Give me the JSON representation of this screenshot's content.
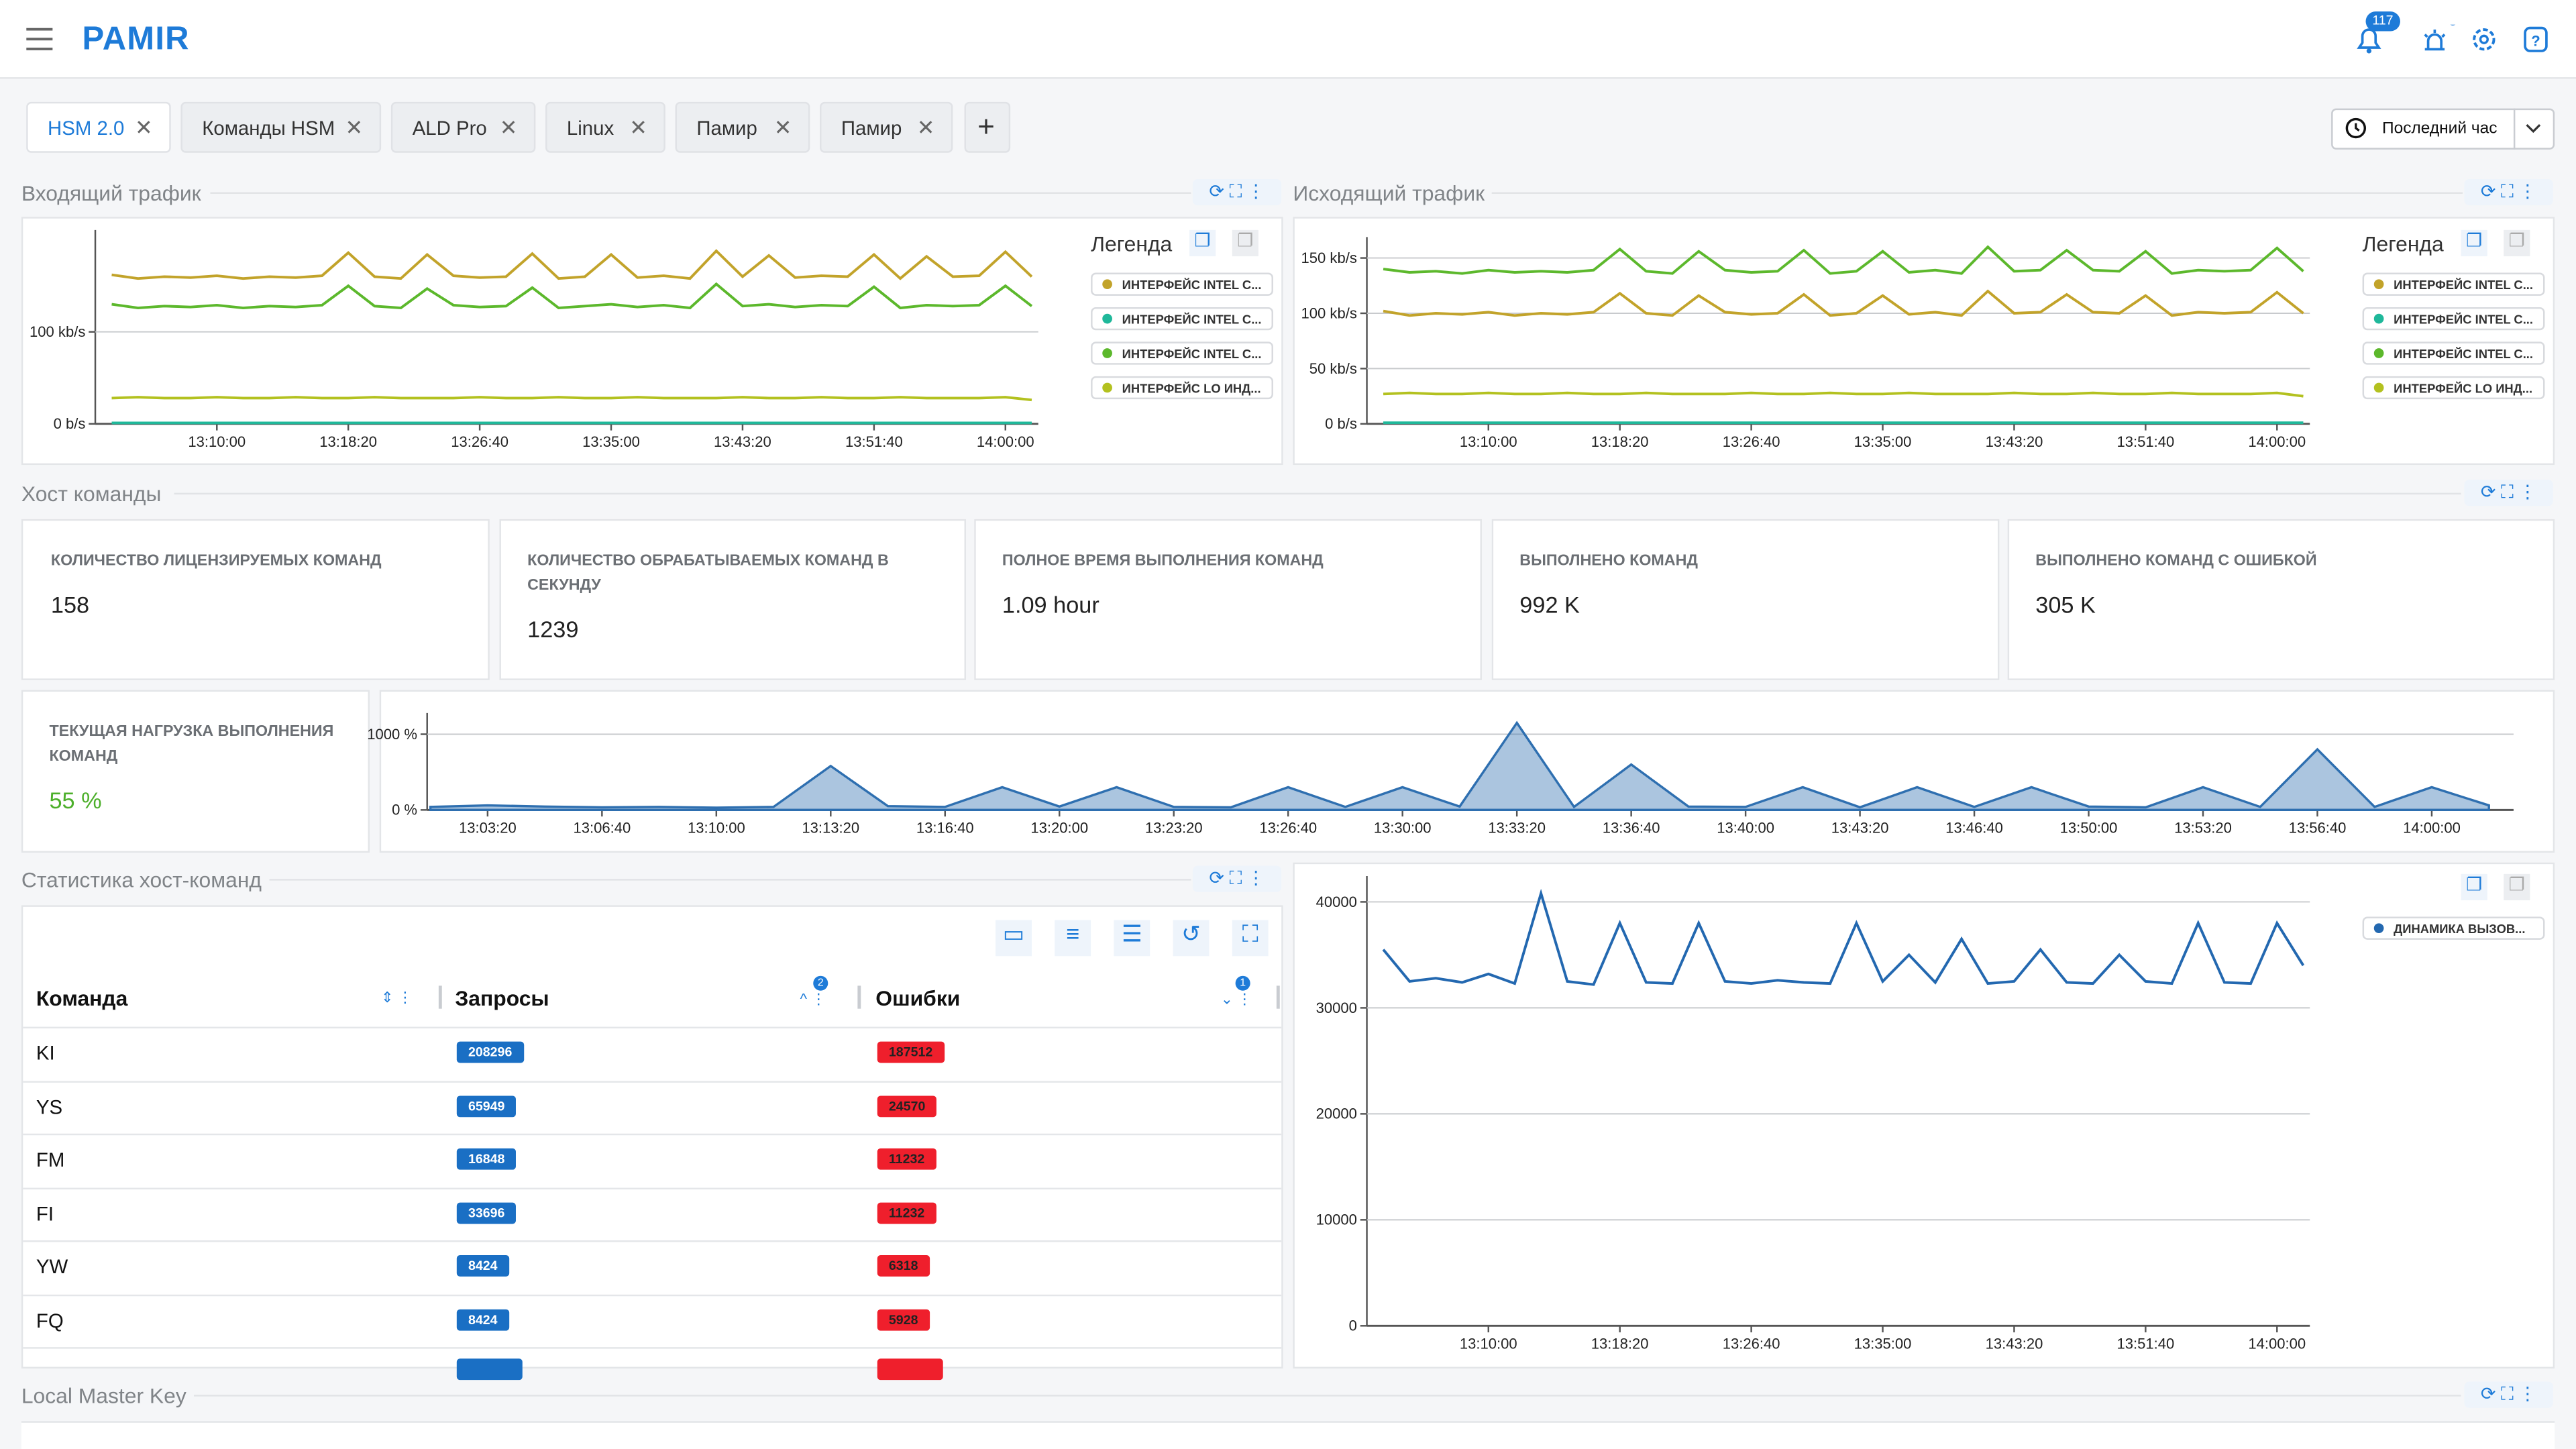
{
  "header": {
    "logo": "PAMIR",
    "notifications": "117"
  },
  "tabs": [
    "HSM 2.0",
    "Команды HSM",
    "ALD Pro",
    "Linux",
    "Памир",
    "Памир"
  ],
  "time_range": "Последний час",
  "sections": {
    "incoming": "Входящий трафик",
    "outgoing": "Исходящий трафик",
    "host": "Хост команды",
    "stats": "Статистика хост-команд",
    "lmk": "Local Master Key"
  },
  "legend_title": "Легенда",
  "cards": [
    {
      "label": "КОЛИЧЕСТВО ЛИЦЕНЗИРУЕМЫХ КОМАНД",
      "value": "158"
    },
    {
      "label": "КОЛИЧЕСТВО ОБРАБАТЫВАЕМЫХ КОМАНД В СЕКУНДУ",
      "value": "1239"
    },
    {
      "label": "ПОЛНОЕ ВРЕМЯ ВЫПОЛНЕНИЯ КОМАНД",
      "value": "1.09 hour"
    },
    {
      "label": "ВЫПОЛНЕНО КОМАНД",
      "value": "992 K"
    },
    {
      "label": "ВЫПОЛНЕНО КОМАНД С ОШИБКОЙ",
      "value": "305 K"
    }
  ],
  "load_card": {
    "label": "ТЕКУЩАЯ НАГРУЗКА ВЫПОЛНЕНИЯ КОМАНД",
    "value": "55 %"
  },
  "table": {
    "columns": [
      "Команда",
      "Запросы",
      "Ошибки"
    ],
    "sort_badges": [
      "2",
      "1"
    ],
    "rows": [
      [
        "KI",
        "208296",
        "187512"
      ],
      [
        "YS",
        "65949",
        "24570"
      ],
      [
        "FM",
        "16848",
        "11232"
      ],
      [
        "FI",
        "33696",
        "11232"
      ],
      [
        "YW",
        "8424",
        "6318"
      ],
      [
        "FQ",
        "8424",
        "5928"
      ]
    ]
  },
  "chart_data": [
    {
      "type": "line",
      "title": "Входящий трафик",
      "x": [
        "13:03:20",
        "13:05:00",
        "13:06:40",
        "13:08:20",
        "13:10:00",
        "13:11:40",
        "13:13:20",
        "13:15:00",
        "13:16:40",
        "13:18:20",
        "13:20:00",
        "13:21:40",
        "13:23:20",
        "13:25:00",
        "13:26:40",
        "13:28:20",
        "13:30:00",
        "13:31:40",
        "13:33:20",
        "13:35:00",
        "13:36:40",
        "13:38:20",
        "13:40:00",
        "13:41:40",
        "13:43:20",
        "13:45:00",
        "13:46:40",
        "13:48:20",
        "13:50:00",
        "13:51:40",
        "13:53:20",
        "13:55:00",
        "13:56:40",
        "13:58:20",
        "14:00:00",
        "14:01:40"
      ],
      "xticks": [
        "13:10:00",
        "13:18:20",
        "13:26:40",
        "13:35:00",
        "13:43:20",
        "13:51:40",
        "14:00:00"
      ],
      "ylim": [
        0,
        200
      ],
      "yticks": [
        {
          "value": 0,
          "label": "0 b/s"
        },
        {
          "value": 100,
          "label": "100 kb/s"
        }
      ],
      "grid": true,
      "series": [
        {
          "name": "ИНТЕРФЕЙС INTEL С...",
          "color": "#c2a32a",
          "values": [
            162,
            158,
            160,
            159,
            161,
            158,
            160,
            159,
            161,
            186,
            160,
            158,
            184,
            161,
            159,
            160,
            185,
            158,
            160,
            184,
            159,
            161,
            158,
            188,
            160,
            183,
            159,
            161,
            160,
            184,
            158,
            182,
            160,
            161,
            187,
            160
          ]
        },
        {
          "name": "ИНТЕРФЕЙС INTEL С...",
          "color": "#1fb89a",
          "values": [
            1,
            1,
            1,
            1,
            1,
            1,
            1,
            1,
            1,
            1,
            1,
            1,
            1,
            1,
            1,
            1,
            1,
            1,
            1,
            1,
            1,
            1,
            1,
            1,
            1,
            1,
            1,
            1,
            1,
            1,
            1,
            1,
            1,
            1,
            1,
            1
          ]
        },
        {
          "name": "ИНТЕРФЕЙС INTEL С...",
          "color": "#5cb82c",
          "values": [
            130,
            126,
            128,
            127,
            129,
            126,
            128,
            127,
            129,
            150,
            128,
            126,
            147,
            129,
            127,
            128,
            148,
            126,
            128,
            130,
            127,
            129,
            126,
            152,
            128,
            130,
            127,
            129,
            128,
            149,
            126,
            129,
            128,
            129,
            150,
            128
          ]
        },
        {
          "name": "ИНТЕРФЕЙС LO ИНД...",
          "color": "#b3c11f",
          "values": [
            28,
            29,
            28,
            28,
            29,
            28,
            28,
            29,
            28,
            28,
            29,
            28,
            28,
            28,
            29,
            28,
            28,
            29,
            28,
            28,
            29,
            28,
            28,
            28,
            29,
            28,
            28,
            29,
            28,
            28,
            29,
            28,
            28,
            28,
            29,
            26
          ]
        }
      ]
    },
    {
      "type": "line",
      "title": "Исходящий трафик",
      "x": [
        "13:03:20",
        "13:05:00",
        "13:06:40",
        "13:08:20",
        "13:10:00",
        "13:11:40",
        "13:13:20",
        "13:15:00",
        "13:16:40",
        "13:18:20",
        "13:20:00",
        "13:21:40",
        "13:23:20",
        "13:25:00",
        "13:26:40",
        "13:28:20",
        "13:30:00",
        "13:31:40",
        "13:33:20",
        "13:35:00",
        "13:36:40",
        "13:38:20",
        "13:40:00",
        "13:41:40",
        "13:43:20",
        "13:45:00",
        "13:46:40",
        "13:48:20",
        "13:50:00",
        "13:51:40",
        "13:53:20",
        "13:55:00",
        "13:56:40",
        "13:58:20",
        "14:00:00",
        "14:01:40"
      ],
      "xticks": [
        "13:10:00",
        "13:18:20",
        "13:26:40",
        "13:35:00",
        "13:43:20",
        "13:51:40",
        "14:00:00"
      ],
      "ylim": [
        0,
        160
      ],
      "yticks": [
        {
          "value": 0,
          "label": "0 b/s"
        },
        {
          "value": 50,
          "label": "50 kb/s"
        },
        {
          "value": 100,
          "label": "100 kb/s"
        },
        {
          "value": 150,
          "label": "150 kb/s"
        }
      ],
      "grid": true,
      "series": [
        {
          "name": "ИНТЕРФЕЙС INTEL С...",
          "color": "#c2a32a",
          "values": [
            102,
            98,
            100,
            99,
            101,
            98,
            100,
            99,
            101,
            118,
            100,
            98,
            116,
            101,
            99,
            100,
            117,
            98,
            100,
            116,
            99,
            101,
            98,
            120,
            100,
            101,
            117,
            101,
            100,
            116,
            98,
            101,
            100,
            101,
            119,
            100
          ]
        },
        {
          "name": "ИНТЕРФЕЙС INTEL С...",
          "color": "#1fb89a",
          "values": [
            1,
            1,
            1,
            1,
            1,
            1,
            1,
            1,
            1,
            1,
            1,
            1,
            1,
            1,
            1,
            1,
            1,
            1,
            1,
            1,
            1,
            1,
            1,
            1,
            1,
            1,
            1,
            1,
            1,
            1,
            1,
            1,
            1,
            1,
            1,
            1
          ]
        },
        {
          "name": "ИНТЕРФЕЙС INTEL С...",
          "color": "#5cb82c",
          "values": [
            140,
            137,
            138,
            136,
            139,
            137,
            138,
            137,
            139,
            158,
            138,
            136,
            156,
            139,
            137,
            138,
            157,
            136,
            138,
            156,
            137,
            139,
            136,
            160,
            138,
            139,
            157,
            139,
            138,
            156,
            136,
            139,
            138,
            139,
            159,
            138
          ]
        },
        {
          "name": "ИНТЕРФЕЙС LO ИНД...",
          "color": "#b3c11f",
          "values": [
            27,
            28,
            27,
            27,
            28,
            27,
            27,
            28,
            27,
            27,
            28,
            27,
            27,
            27,
            28,
            27,
            27,
            28,
            27,
            27,
            28,
            27,
            27,
            27,
            28,
            27,
            27,
            28,
            27,
            27,
            28,
            27,
            27,
            27,
            28,
            25
          ]
        }
      ]
    },
    {
      "type": "area",
      "title": "ТЕКУЩАЯ НАГРУЗКА ВЫПОЛНЕНИЯ КОМАНД",
      "x": [
        "13:01:40",
        "13:03:20",
        "13:05:00",
        "13:06:40",
        "13:08:20",
        "13:10:00",
        "13:11:40",
        "13:13:20",
        "13:15:00",
        "13:16:40",
        "13:18:20",
        "13:20:00",
        "13:21:40",
        "13:23:20",
        "13:25:00",
        "13:26:40",
        "13:28:20",
        "13:30:00",
        "13:31:40",
        "13:33:20",
        "13:35:00",
        "13:36:40",
        "13:38:20",
        "13:40:00",
        "13:41:40",
        "13:43:20",
        "13:45:00",
        "13:46:40",
        "13:48:20",
        "13:50:00",
        "13:51:40",
        "13:53:20",
        "13:55:00",
        "13:56:40",
        "13:58:20",
        "14:00:00",
        "14:01:40"
      ],
      "xticks": [
        "13:03:20",
        "13:06:40",
        "13:10:00",
        "13:13:20",
        "13:16:40",
        "13:20:00",
        "13:23:20",
        "13:26:40",
        "13:30:00",
        "13:33:20",
        "13:36:40",
        "13:40:00",
        "13:43:20",
        "13:46:40",
        "13:50:00",
        "13:53:20",
        "13:56:40",
        "14:00:00"
      ],
      "ylim": [
        0,
        1150
      ],
      "yticks": [
        {
          "value": 0,
          "label": "0 %"
        },
        {
          "value": 1000,
          "label": "1000 %"
        }
      ],
      "grid": true,
      "color": "#2e6fb0",
      "values": [
        40,
        60,
        45,
        35,
        40,
        30,
        40,
        580,
        50,
        40,
        300,
        45,
        300,
        40,
        35,
        300,
        40,
        300,
        45,
        1150,
        40,
        600,
        45,
        40,
        300,
        35,
        300,
        40,
        300,
        45,
        35,
        300,
        40,
        800,
        40,
        300,
        60
      ]
    },
    {
      "type": "line",
      "title": "Статистика хост-команд",
      "x": [
        "13:03:20",
        "13:05:00",
        "13:06:40",
        "13:08:20",
        "13:10:00",
        "13:11:40",
        "13:13:20",
        "13:15:00",
        "13:16:40",
        "13:18:20",
        "13:20:00",
        "13:21:40",
        "13:23:20",
        "13:25:00",
        "13:26:40",
        "13:28:20",
        "13:30:00",
        "13:31:40",
        "13:33:20",
        "13:35:00",
        "13:36:40",
        "13:38:20",
        "13:40:00",
        "13:41:40",
        "13:43:20",
        "13:45:00",
        "13:46:40",
        "13:48:20",
        "13:50:00",
        "13:51:40",
        "13:53:20",
        "13:55:00",
        "13:56:40",
        "13:58:20",
        "14:00:00",
        "14:01:40"
      ],
      "xticks": [
        "13:10:00",
        "13:18:20",
        "13:26:40",
        "13:35:00",
        "13:43:20",
        "13:51:40",
        "14:00:00"
      ],
      "ylim": [
        0,
        41500
      ],
      "yticks": [
        0,
        10000,
        20000,
        30000,
        40000
      ],
      "grid": true,
      "series": [
        {
          "name": "ДИНАМИКА ВЫЗОВ...",
          "color": "#2368b0",
          "values": [
            35500,
            32500,
            32800,
            32400,
            33200,
            32300,
            40800,
            32500,
            32200,
            38000,
            32400,
            32300,
            38000,
            32500,
            32300,
            32600,
            32400,
            32300,
            38000,
            32500,
            35000,
            32400,
            36500,
            32300,
            32500,
            35500,
            32400,
            32300,
            35000,
            32500,
            32300,
            38000,
            32400,
            32300,
            38000,
            34000
          ]
        }
      ]
    }
  ]
}
